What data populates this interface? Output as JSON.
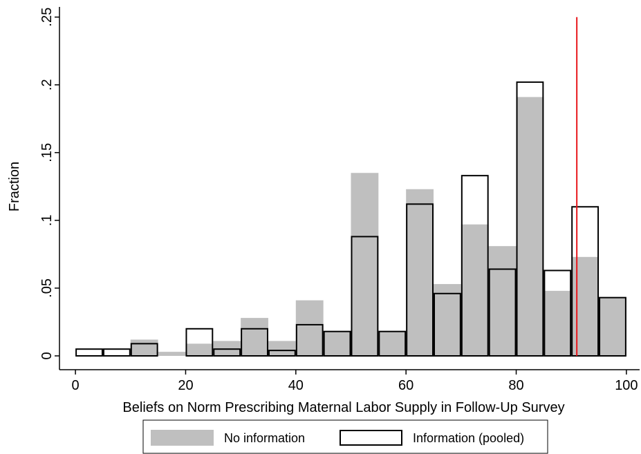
{
  "chart_data": {
    "type": "histogram",
    "xlabel": "Beliefs on Norm Prescribing Maternal Labor Supply in Follow-Up Survey",
    "ylabel": "Fraction",
    "bins": [
      0,
      5,
      10,
      15,
      20,
      25,
      30,
      35,
      40,
      45,
      50,
      55,
      60,
      65,
      70,
      75,
      80,
      85,
      90,
      95,
      100
    ],
    "series": [
      {
        "name": "No information",
        "color": "#bfbfbf",
        "style": "filled",
        "values": [
          0,
          0,
          0.012,
          0.003,
          0.009,
          0.011,
          0.028,
          0.011,
          0.041,
          0.018,
          0.135,
          0.018,
          0.123,
          0.053,
          0.097,
          0.081,
          0.191,
          0.048,
          0.073,
          0.043
        ]
      },
      {
        "name": "Information (pooled)",
        "color": "#000000",
        "style": "outline",
        "values": [
          0.005,
          0.005,
          0.009,
          0,
          0.02,
          0.005,
          0.02,
          0.004,
          0.023,
          0.018,
          0.088,
          0.018,
          0.112,
          0.046,
          0.133,
          0.064,
          0.202,
          0.063,
          0.11,
          0.043
        ]
      }
    ],
    "reference_line": {
      "x": 91,
      "color": "#e8161b"
    },
    "xlim": [
      -2.9,
      102.4
    ],
    "ylim": [
      -0.0102,
      0.2575
    ],
    "xticks": [
      0,
      20,
      40,
      60,
      80,
      100
    ],
    "yticks": [
      0,
      {
        "value": 0.05,
        "label": ".05"
      },
      {
        "value": 0.1,
        "label": ".1"
      },
      {
        "value": 0.15,
        "label": ".15"
      },
      {
        "value": 0.2,
        "label": ".2"
      },
      {
        "value": 0.25,
        "label": ".25"
      }
    ],
    "legend": "bottom"
  }
}
